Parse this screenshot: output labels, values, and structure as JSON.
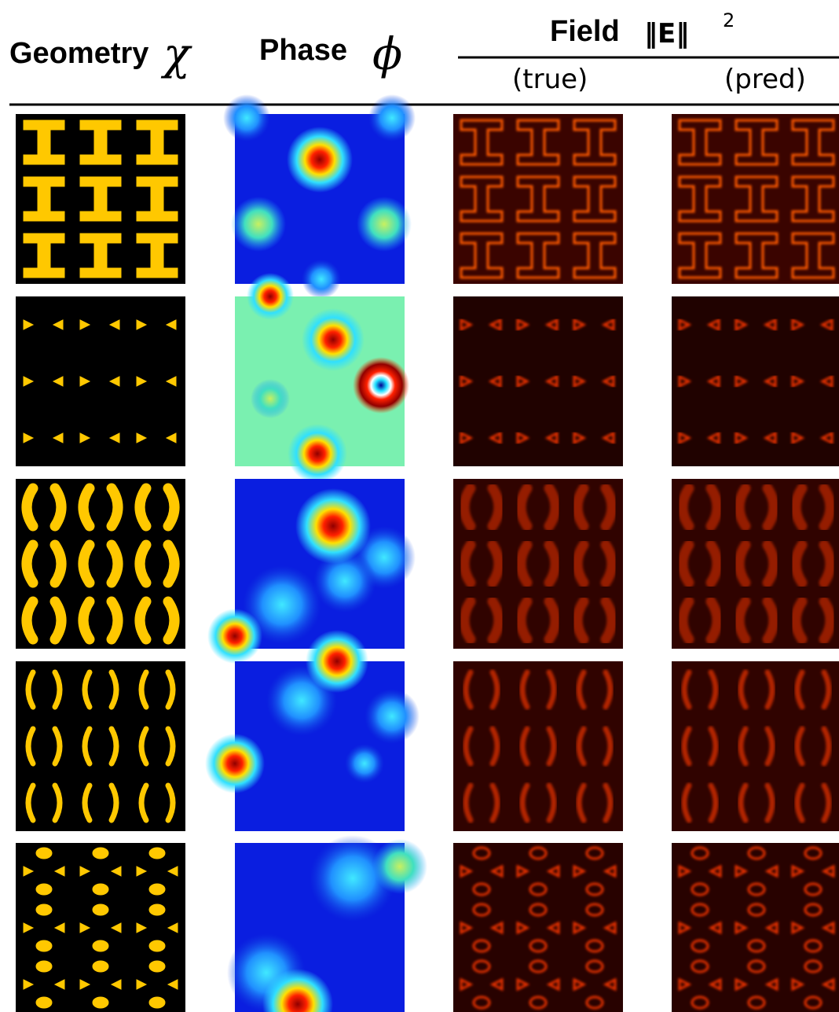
{
  "header": {
    "geometry": "Geometry",
    "chi": "χ",
    "phase": "Phase",
    "phi": "ϕ",
    "field": "Field",
    "norm": "‖E‖",
    "exponent": "2",
    "true": "(true)",
    "pred": "(pred)"
  }
}
